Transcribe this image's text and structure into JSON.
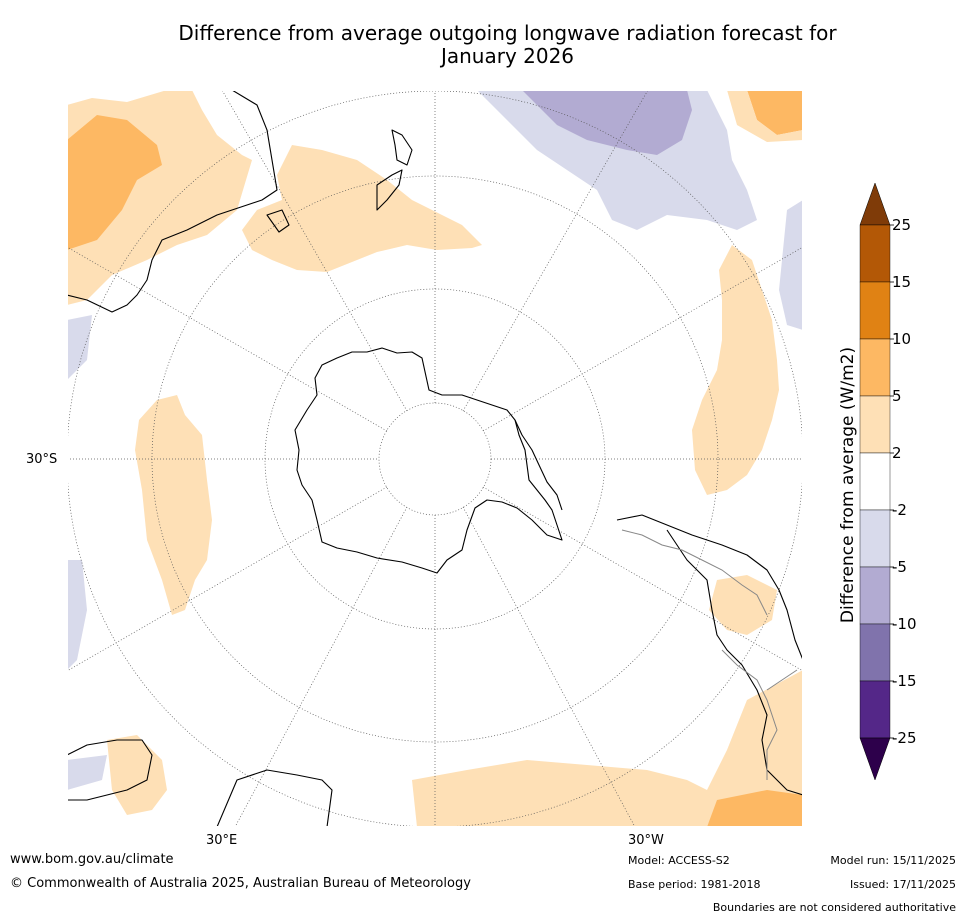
{
  "title_line1": "Difference from average outgoing longwave radiation forecast for",
  "title_line2": "January 2026",
  "lat_label": "30°S",
  "lon_labels": {
    "east": "30°E",
    "west": "30°W"
  },
  "colorbar": {
    "label": "Difference from average (W/m2)",
    "ticks": [
      "25",
      "15",
      "10",
      "5",
      "2",
      "-2",
      "-5",
      "-10",
      "-15",
      "-25"
    ],
    "colors": [
      "#7f3b08",
      "#b35806",
      "#e08214",
      "#fdb863",
      "#fee0b6",
      "#ffffff",
      "#d8daeb",
      "#b2abd2",
      "#8073ac",
      "#542788",
      "#2d004b"
    ]
  },
  "footer": {
    "website": "www.bom.gov.au/climate",
    "copyright": "© Commonwealth of Australia 2025, Australian Bureau of Meteorology",
    "model": "Model: ACCESS-S2",
    "base_period": "Base period: 1981-2018",
    "model_run": "Model run: 15/11/2025",
    "issued": "Issued: 17/11/2025",
    "disclaimer": "Boundaries are not considered authoritative"
  }
}
